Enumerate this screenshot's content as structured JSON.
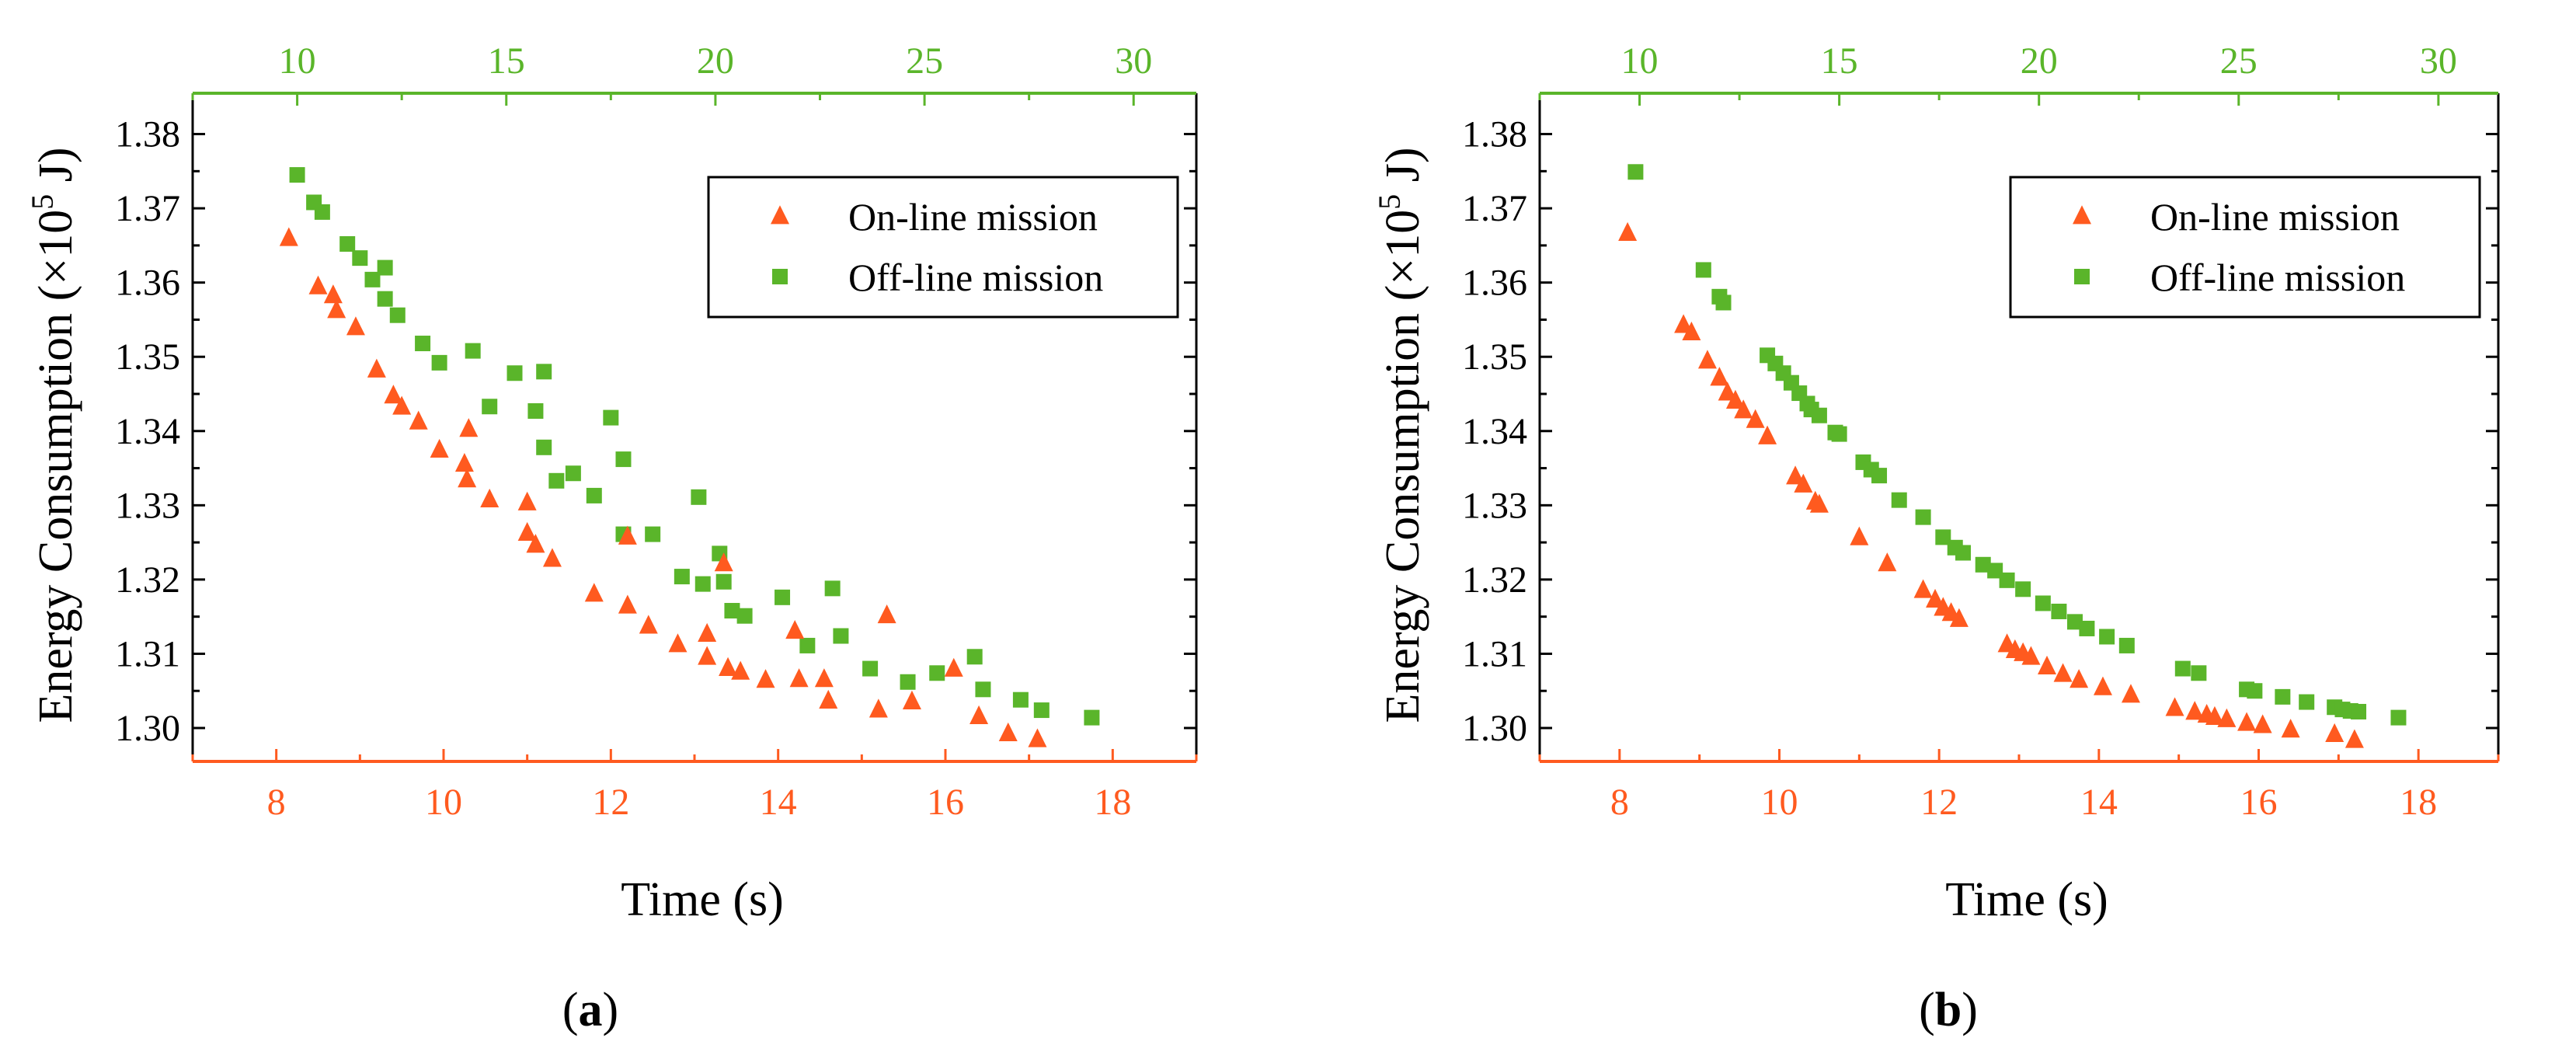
{
  "colors": {
    "online": "#ff5a1f",
    "offline": "#5ab52a",
    "axis_black": "#000000"
  },
  "chart_data": [
    {
      "type": "scatter",
      "panel_label": "a",
      "xlabel": "Time (s)",
      "ylabel_prefix": "Energy Consumption (×10",
      "ylabel_exp": "5",
      "ylabel_suffix": " J)",
      "xlim": [
        7,
        19
      ],
      "x_ticks": [
        8,
        10,
        12,
        14,
        16,
        18
      ],
      "ylim": [
        1.2955,
        1.3855
      ],
      "y_ticks": [
        "1.30",
        "1.31",
        "1.32",
        "1.33",
        "1.34",
        "1.35",
        "1.36",
        "1.37",
        "1.38"
      ],
      "top_axis": {
        "range": [
          7.5,
          31.5
        ],
        "ticks": [
          10,
          15,
          20,
          25,
          30
        ]
      },
      "legend_position": "top-right",
      "series": [
        {
          "name": "On-line mission",
          "marker": "triangle",
          "points": [
            [
              8.15,
              1.366
            ],
            [
              8.5,
              1.3595
            ],
            [
              8.68,
              1.3583
            ],
            [
              8.72,
              1.3563
            ],
            [
              8.95,
              1.354
            ],
            [
              9.2,
              1.3483
            ],
            [
              9.4,
              1.3448
            ],
            [
              9.5,
              1.3433
            ],
            [
              9.7,
              1.3413
            ],
            [
              9.95,
              1.3375
            ],
            [
              10.25,
              1.3356
            ],
            [
              10.3,
              1.3403
            ],
            [
              10.28,
              1.3335
            ],
            [
              10.55,
              1.3308
            ],
            [
              11.0,
              1.3304
            ],
            [
              11.0,
              1.3263
            ],
            [
              11.1,
              1.3247
            ],
            [
              11.3,
              1.3228
            ],
            [
              12.2,
              1.3258
            ],
            [
              11.8,
              1.3181
            ],
            [
              12.2,
              1.3165
            ],
            [
              12.45,
              1.3138
            ],
            [
              12.8,
              1.3113
            ],
            [
              13.15,
              1.3127
            ],
            [
              13.15,
              1.3096
            ],
            [
              13.35,
              1.3222
            ],
            [
              13.4,
              1.3081
            ],
            [
              13.55,
              1.3076
            ],
            [
              13.85,
              1.3065
            ],
            [
              14.2,
              1.3131
            ],
            [
              14.25,
              1.3066
            ],
            [
              14.55,
              1.3066
            ],
            [
              14.6,
              1.3037
            ],
            [
              15.2,
              1.3025
            ],
            [
              15.3,
              1.3152
            ],
            [
              15.6,
              1.3036
            ],
            [
              16.1,
              1.308
            ],
            [
              16.4,
              1.3016
            ],
            [
              16.75,
              1.2993
            ],
            [
              17.1,
              1.2985
            ]
          ]
        },
        {
          "name": "Off-line mission",
          "marker": "square",
          "points": [
            [
              8.25,
              1.3745
            ],
            [
              8.45,
              1.3708
            ],
            [
              8.55,
              1.3695
            ],
            [
              8.85,
              1.3652
            ],
            [
              9.0,
              1.3633
            ],
            [
              9.15,
              1.3604
            ],
            [
              9.3,
              1.362
            ],
            [
              9.3,
              1.3578
            ],
            [
              9.45,
              1.3556
            ],
            [
              9.75,
              1.3518
            ],
            [
              9.95,
              1.3492
            ],
            [
              10.35,
              1.3508
            ],
            [
              10.55,
              1.3433
            ],
            [
              10.85,
              1.3478
            ],
            [
              11.1,
              1.3427
            ],
            [
              11.2,
              1.3378
            ],
            [
              11.2,
              1.348
            ],
            [
              11.35,
              1.3333
            ],
            [
              11.55,
              1.3343
            ],
            [
              11.8,
              1.3313
            ],
            [
              12.0,
              1.3418
            ],
            [
              12.15,
              1.3362
            ],
            [
              12.15,
              1.3261
            ],
            [
              12.5,
              1.3261
            ],
            [
              12.85,
              1.3204
            ],
            [
              13.05,
              1.3311
            ],
            [
              13.1,
              1.3194
            ],
            [
              13.3,
              1.3235
            ],
            [
              13.35,
              1.3197
            ],
            [
              13.45,
              1.3158
            ],
            [
              13.6,
              1.3151
            ],
            [
              14.05,
              1.3176
            ],
            [
              14.35,
              1.3111
            ],
            [
              14.65,
              1.3188
            ],
            [
              14.75,
              1.3124
            ],
            [
              15.1,
              1.308
            ],
            [
              15.55,
              1.3062
            ],
            [
              15.9,
              1.3074
            ],
            [
              16.35,
              1.3096
            ],
            [
              16.45,
              1.3052
            ],
            [
              16.9,
              1.3038
            ],
            [
              17.15,
              1.3024
            ],
            [
              17.75,
              1.3014
            ]
          ]
        }
      ]
    },
    {
      "type": "scatter",
      "panel_label": "b",
      "xlabel": "Time (s)",
      "ylabel_prefix": "Energy Consumption (×10",
      "ylabel_exp": "5",
      "ylabel_suffix": " J)",
      "xlim": [
        7,
        19
      ],
      "x_ticks": [
        8,
        10,
        12,
        14,
        16,
        18
      ],
      "ylim": [
        1.2955,
        1.3855
      ],
      "y_ticks": [
        "1.30",
        "1.31",
        "1.32",
        "1.33",
        "1.34",
        "1.35",
        "1.36",
        "1.37",
        "1.38"
      ],
      "top_axis": {
        "range": [
          7.5,
          31.5
        ],
        "ticks": [
          10,
          15,
          20,
          25,
          30
        ]
      },
      "legend_position": "top-right",
      "series": [
        {
          "name": "On-line mission",
          "marker": "triangle",
          "points": [
            [
              8.1,
              1.3667
            ],
            [
              8.8,
              1.3543
            ],
            [
              8.9,
              1.3533
            ],
            [
              9.1,
              1.3495
            ],
            [
              9.25,
              1.3472
            ],
            [
              9.35,
              1.3452
            ],
            [
              9.45,
              1.3441
            ],
            [
              9.55,
              1.3428
            ],
            [
              9.7,
              1.3415
            ],
            [
              9.85,
              1.3393
            ],
            [
              10.2,
              1.3339
            ],
            [
              10.3,
              1.3328
            ],
            [
              10.45,
              1.3305
            ],
            [
              10.5,
              1.3301
            ],
            [
              11.0,
              1.3257
            ],
            [
              11.35,
              1.3222
            ],
            [
              11.8,
              1.3186
            ],
            [
              11.95,
              1.3173
            ],
            [
              12.05,
              1.3162
            ],
            [
              12.15,
              1.3155
            ],
            [
              12.25,
              1.3147
            ],
            [
              12.85,
              1.3113
            ],
            [
              12.95,
              1.3105
            ],
            [
              13.05,
              1.3101
            ],
            [
              13.15,
              1.3096
            ],
            [
              13.35,
              1.3083
            ],
            [
              13.55,
              1.3073
            ],
            [
              13.75,
              1.3065
            ],
            [
              14.05,
              1.3055
            ],
            [
              14.4,
              1.3045
            ],
            [
              14.95,
              1.3027
            ],
            [
              15.2,
              1.3022
            ],
            [
              15.35,
              1.3018
            ],
            [
              15.45,
              1.3015
            ],
            [
              15.6,
              1.3012
            ],
            [
              15.85,
              1.3007
            ],
            [
              16.05,
              1.3004
            ],
            [
              16.4,
              1.2998
            ],
            [
              16.95,
              1.2992
            ],
            [
              17.2,
              1.2984
            ]
          ]
        },
        {
          "name": "Off-line mission",
          "marker": "square",
          "points": [
            [
              8.2,
              1.3749
            ],
            [
              9.05,
              1.3617
            ],
            [
              9.25,
              1.3581
            ],
            [
              9.3,
              1.3573
            ],
            [
              9.85,
              1.3502
            ],
            [
              9.95,
              1.3491
            ],
            [
              10.05,
              1.3478
            ],
            [
              10.15,
              1.3465
            ],
            [
              10.25,
              1.3451
            ],
            [
              10.35,
              1.3437
            ],
            [
              10.4,
              1.3429
            ],
            [
              10.5,
              1.3421
            ],
            [
              10.7,
              1.3398
            ],
            [
              10.75,
              1.3396
            ],
            [
              11.05,
              1.3358
            ],
            [
              11.15,
              1.3348
            ],
            [
              11.25,
              1.334
            ],
            [
              11.5,
              1.3307
            ],
            [
              11.8,
              1.3284
            ],
            [
              12.05,
              1.3257
            ],
            [
              12.2,
              1.3243
            ],
            [
              12.3,
              1.3236
            ],
            [
              12.55,
              1.322
            ],
            [
              12.7,
              1.3212
            ],
            [
              12.85,
              1.3199
            ],
            [
              13.05,
              1.3187
            ],
            [
              13.3,
              1.3168
            ],
            [
              13.5,
              1.3157
            ],
            [
              13.7,
              1.3143
            ],
            [
              13.85,
              1.3134
            ],
            [
              14.1,
              1.3123
            ],
            [
              14.35,
              1.3111
            ],
            [
              15.05,
              1.308
            ],
            [
              15.25,
              1.3074
            ],
            [
              15.85,
              1.3052
            ],
            [
              15.95,
              1.305
            ],
            [
              16.3,
              1.3042
            ],
            [
              16.6,
              1.3035
            ],
            [
              16.95,
              1.3028
            ],
            [
              17.05,
              1.3025
            ],
            [
              17.15,
              1.3023
            ],
            [
              17.25,
              1.3022
            ],
            [
              17.75,
              1.3014
            ]
          ]
        }
      ]
    }
  ]
}
